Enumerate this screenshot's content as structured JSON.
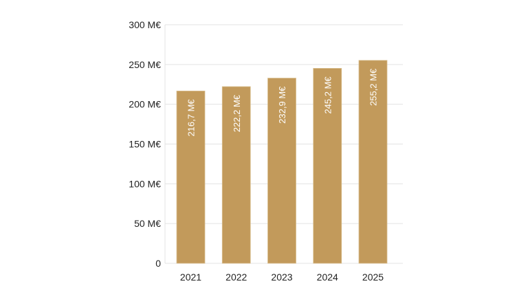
{
  "chart_data": {
    "type": "bar",
    "title": "",
    "xlabel": "",
    "ylabel": "",
    "categories": [
      "2021",
      "2022",
      "2023",
      "2024",
      "2025"
    ],
    "values": [
      216.7,
      222.2,
      232.9,
      245.2,
      255.2
    ],
    "data_labels": [
      "216,7 M€",
      "222,2 M€",
      "232,9 M€",
      "245,2 M€",
      "255,2 M€"
    ],
    "ylim": [
      0,
      300
    ],
    "yticks": [
      0,
      50,
      100,
      150,
      200,
      250,
      300
    ],
    "ytick_labels": [
      "0",
      "50 M€",
      "100 M€",
      "150 M€",
      "200 M€",
      "250 M€",
      "300 M€"
    ],
    "grid": true,
    "legend": "none",
    "colors": {
      "bar": "#c29a5b",
      "grid": "#e3e3e3",
      "label": "#ffffff"
    }
  }
}
